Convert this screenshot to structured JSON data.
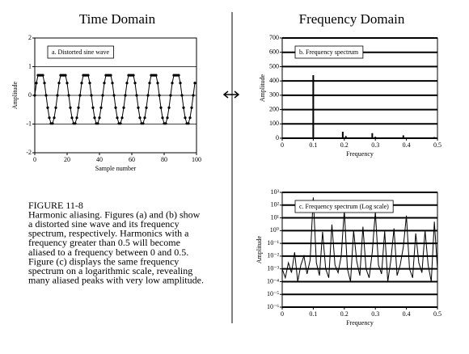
{
  "headings": [
    "Time Domain",
    "Frequency Domain"
  ],
  "caption": [
    "FIGURE 11-8",
    "Harmonic aliasing. Figures (a) and (b) show",
    "a distorted sine wave and its frequency",
    "spectrum, respectively.  Harmonics with a",
    "frequency greater than 0.5 will become",
    "aliased to a frequency between 0 and 0.5.",
    "Figure (c) displays the same frequency",
    "spectrum on a logarithmic scale, revealing",
    "many aliased peaks with very low amplitude."
  ],
  "chart_data": [
    {
      "type": "line",
      "label": "a.  Distorted sine wave",
      "xlabel": "Sample number",
      "ylabel": "Amplitude",
      "markers": true,
      "grid": true,
      "xlim": [
        0,
        100
      ],
      "xticks": [
        0,
        20,
        40,
        60,
        80,
        100
      ],
      "ylim": [
        -2,
        2
      ],
      "yticks": [
        -2,
        -1,
        0,
        1,
        2
      ],
      "x": [
        0,
        1,
        2,
        3,
        4,
        5,
        6,
        7,
        8,
        9,
        10,
        11,
        12,
        13,
        14,
        15,
        16,
        17,
        18,
        19,
        20,
        21,
        22,
        23,
        24,
        25,
        26,
        27,
        28,
        29,
        30,
        31,
        32,
        33,
        34,
        35,
        36,
        37,
        38,
        39,
        40,
        41,
        42,
        43,
        44,
        45,
        46,
        47,
        48,
        49,
        50,
        51,
        52,
        53,
        54,
        55,
        56,
        57,
        58,
        59,
        60,
        61,
        62,
        63,
        64,
        65,
        66,
        67,
        68,
        69,
        70,
        71,
        72,
        73,
        74,
        75,
        76,
        77,
        78,
        79,
        80,
        81,
        82,
        83,
        84,
        85,
        86,
        87,
        88,
        89,
        90,
        91,
        92,
        93,
        94,
        95,
        96,
        97,
        98,
        99
      ],
      "values": [
        0,
        0.43,
        0.7,
        0.7,
        0.7,
        0.7,
        0.43,
        0,
        -0.43,
        -0.78,
        -0.98,
        -0.98,
        -0.78,
        -0.43,
        0,
        0.43,
        0.7,
        0.7,
        0.7,
        0.7,
        0.43,
        0,
        -0.43,
        -0.78,
        -0.98,
        -0.98,
        -0.78,
        -0.43,
        0,
        0.43,
        0.7,
        0.7,
        0.7,
        0.7,
        0.43,
        0,
        -0.43,
        -0.78,
        -0.98,
        -0.98,
        -0.78,
        -0.43,
        0,
        0.43,
        0.7,
        0.7,
        0.7,
        0.7,
        0.43,
        0,
        -0.43,
        -0.78,
        -0.98,
        -0.98,
        -0.78,
        -0.43,
        0,
        0.43,
        0.7,
        0.7,
        0.7,
        0.7,
        0.43,
        0,
        -0.43,
        -0.78,
        -0.98,
        -0.98,
        -0.78,
        -0.43,
        0,
        0.43,
        0.7,
        0.7,
        0.7,
        0.7,
        0.43,
        0,
        -0.43,
        -0.78,
        -0.98,
        -0.98,
        -0.78,
        -0.43,
        0,
        0.43,
        0.7,
        0.7,
        0.7,
        0.7,
        0.43,
        0,
        -0.43,
        -0.78,
        -0.98,
        -0.98,
        -0.78,
        -0.43,
        0,
        0.43
      ],
      "color": "#000000"
    },
    {
      "type": "stem",
      "label": "b.  Frequency spectrum",
      "xlabel": "Frequency",
      "ylabel": "Amplitude",
      "grid": true,
      "xlim": [
        0,
        0.5
      ],
      "xticks": [
        0,
        0.1,
        0.2,
        0.3,
        0.4,
        0.5
      ],
      "ylim": [
        0,
        700
      ],
      "yticks": [
        0,
        100,
        200,
        300,
        400,
        500,
        600,
        700
      ],
      "x": [
        0.1,
        0.195,
        0.205,
        0.29,
        0.3,
        0.39,
        0.49
      ],
      "values": [
        440,
        45,
        15,
        35,
        10,
        20,
        8
      ],
      "color": "#000000"
    },
    {
      "type": "line",
      "label": "c.  Frequency spectrum (Log scale)",
      "xlabel": "Frequency",
      "ylabel": "Amplitude",
      "grid": true,
      "log_y": true,
      "xlim": [
        0,
        0.5
      ],
      "xticks": [
        0,
        0.1,
        0.2,
        0.3,
        0.4,
        0.5
      ],
      "ylim": [
        1e-06,
        1000
      ],
      "yticks": [
        {
          "value": 1000,
          "label": "10³"
        },
        {
          "value": 100,
          "label": "10²"
        },
        {
          "value": 10,
          "label": "10¹"
        },
        {
          "value": 1,
          "label": "10⁰"
        },
        {
          "value": 0.1,
          "label": "10⁻¹"
        },
        {
          "value": 0.01,
          "label": "10⁻²"
        },
        {
          "value": 0.001,
          "label": "10⁻³"
        },
        {
          "value": 0.0001,
          "label": "10⁻⁴"
        },
        {
          "value": 1e-05,
          "label": "10⁻⁵"
        },
        {
          "value": 1e-06,
          "label": "10⁻⁶"
        }
      ],
      "x": [
        0,
        0.01,
        0.02,
        0.03,
        0.04,
        0.05,
        0.06,
        0.07,
        0.08,
        0.09,
        0.1,
        0.11,
        0.12,
        0.13,
        0.14,
        0.15,
        0.16,
        0.17,
        0.18,
        0.19,
        0.2,
        0.21,
        0.22,
        0.23,
        0.24,
        0.25,
        0.26,
        0.27,
        0.28,
        0.29,
        0.3,
        0.31,
        0.32,
        0.33,
        0.34,
        0.35,
        0.36,
        0.37,
        0.38,
        0.39,
        0.4,
        0.41,
        0.42,
        0.43,
        0.44,
        0.45,
        0.46,
        0.47,
        0.48,
        0.49,
        0.5
      ],
      "values": [
        0.001,
        0.0002,
        0.003,
        0.0005,
        0.02,
        0.0001,
        0.002,
        0.01,
        0.0004,
        0.005,
        400,
        0.003,
        0.0003,
        0.8,
        0.001,
        0.0002,
        3,
        0.002,
        0.0005,
        0.01,
        40,
        0.001,
        0.0001,
        1,
        0.004,
        0.0003,
        2,
        0.001,
        0.0002,
        0.02,
        30,
        0.002,
        0.0004,
        0.9,
        0.0001,
        0.005,
        1.5,
        0.0003,
        0.002,
        0.05,
        15,
        0.001,
        0.0002,
        0.6,
        0.003,
        0.0005,
        1,
        0.002,
        0.0001,
        5,
        0.001
      ],
      "color": "#000000"
    }
  ]
}
